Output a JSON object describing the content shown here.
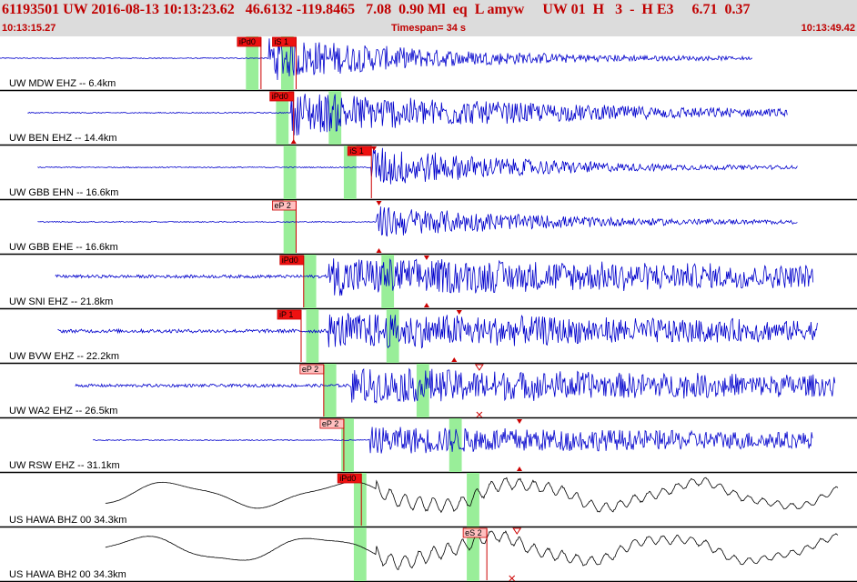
{
  "header": {
    "title": "61193501 UW 2016-08-13 10:13:23.62   46.6132 -119.8465   7.08  0.90 Ml  eq  L amyw     UW 01  H   3  -  H E3     6.71  0.37",
    "start_time": "10:13:15.27",
    "timespan": "Timespan=  34 s",
    "end_time": "10:13:49.42"
  },
  "colors": {
    "short_period_trace": "#0000cc",
    "broadband_trace": "#000000",
    "pick": "#cc0000",
    "window": "#99ee99",
    "header_text": "#c00000",
    "header_bg": "#dcdcdc"
  },
  "chart_data": {
    "type": "line",
    "x_unit": "seconds since 10:13:15.27",
    "xlim": [
      0,
      34.15
    ],
    "traces": [
      {
        "label": "UW MDW EHZ -- 6.4km",
        "trace_color": "blue",
        "signal_start": 0.0,
        "signal_end": 30.0,
        "onset": 10.7,
        "decay": 0.14,
        "amp": 0.9,
        "noise": 0.02,
        "lowfreq": false,
        "windows": [
          [
            9.8,
            10.3
          ],
          [
            11.2,
            11.7
          ]
        ],
        "picks": [
          {
            "label": "iPd0",
            "time": 10.4
          },
          {
            "label": "iS 1",
            "time": 11.8
          }
        ],
        "markers": []
      },
      {
        "label": "UW BEN EHZ -- 14.4km",
        "trace_color": "blue",
        "signal_start": 1.1,
        "signal_end": 31.4,
        "onset": 11.6,
        "decay": 0.09,
        "amp": 0.9,
        "noise": 0.02,
        "lowfreq": false,
        "windows": [
          [
            11.0,
            11.5
          ],
          [
            13.1,
            13.6
          ]
        ],
        "picks": [
          {
            "label": "iPd0",
            "time": 11.7
          }
        ],
        "markers": [
          {
            "time": 11.7,
            "pos": "bottom",
            "shape": "tri-up"
          }
        ]
      },
      {
        "label": "UW GBB EHN -- 16.6km",
        "trace_color": "blue",
        "signal_start": 1.5,
        "signal_end": 31.8,
        "onset": 14.8,
        "decay": 0.16,
        "amp": 0.85,
        "noise": 0.02,
        "lowfreq": false,
        "windows": [
          [
            11.3,
            11.8
          ],
          [
            13.7,
            14.2
          ]
        ],
        "picks": [
          {
            "label": "iS 1",
            "time": 14.8
          }
        ],
        "markers": [
          {
            "time": 14.9,
            "pos": "top",
            "shape": "tri-down"
          }
        ]
      },
      {
        "label": "UW GBB EHE -- 16.6km",
        "trace_color": "blue",
        "signal_start": 1.5,
        "signal_end": 31.8,
        "onset": 15.0,
        "decay": 0.14,
        "amp": 0.65,
        "noise": 0.02,
        "lowfreq": false,
        "windows": [
          [
            11.3,
            11.8
          ]
        ],
        "picks": [
          {
            "label": "eP 2",
            "time": 11.8
          }
        ],
        "markers": [
          {
            "time": 15.1,
            "pos": "top",
            "shape": "tri-down"
          },
          {
            "time": 15.1,
            "pos": "bottom",
            "shape": "tri-up"
          }
        ]
      },
      {
        "label": "UW SNI EHZ -- 21.8km",
        "trace_color": "blue",
        "signal_start": 2.2,
        "signal_end": 32.4,
        "onset": 13.1,
        "decay": 0.03,
        "amp": 0.75,
        "noise": 0.06,
        "lowfreq": false,
        "windows": [
          [
            12.1,
            12.6
          ],
          [
            15.2,
            15.7
          ]
        ],
        "picks": [
          {
            "label": "iPd0",
            "time": 12.1
          }
        ],
        "markers": [
          {
            "time": 17.0,
            "pos": "top",
            "shape": "tri-down"
          },
          {
            "time": 17.0,
            "pos": "bottom",
            "shape": "tri-up"
          }
        ]
      },
      {
        "label": "UW BVW EHZ -- 22.2km",
        "trace_color": "blue",
        "signal_start": 2.3,
        "signal_end": 32.6,
        "onset": 13.1,
        "decay": 0.03,
        "amp": 0.7,
        "noise": 0.07,
        "lowfreq": false,
        "windows": [
          [
            12.2,
            12.7
          ],
          [
            15.4,
            15.9
          ]
        ],
        "picks": [
          {
            "label": "iP 1",
            "time": 12.0
          }
        ],
        "markers": [
          {
            "time": 18.3,
            "pos": "top",
            "shape": "tri-down"
          },
          {
            "time": 18.1,
            "pos": "bottom",
            "shape": "tri-up"
          }
        ]
      },
      {
        "label": "UW WA2 EHZ -- 26.5km",
        "trace_color": "blue",
        "signal_start": 3.0,
        "signal_end": 33.3,
        "onset": 14.0,
        "decay": 0.03,
        "amp": 0.7,
        "noise": 0.06,
        "lowfreq": false,
        "windows": [
          [
            12.9,
            13.4
          ],
          [
            16.6,
            17.1
          ]
        ],
        "picks": [
          {
            "label": "eP 2",
            "time": 12.9
          }
        ],
        "markers": [
          {
            "time": 19.1,
            "pos": "top",
            "shape": "open-down"
          },
          {
            "time": 19.1,
            "pos": "bottom",
            "shape": "x"
          }
        ]
      },
      {
        "label": "UW RSW EHZ -- 31.1km",
        "trace_color": "blue",
        "signal_start": 3.7,
        "signal_end": 32.4,
        "onset": 14.7,
        "decay": 0.03,
        "amp": 0.55,
        "noise": 0.02,
        "lowfreq": false,
        "windows": [
          [
            13.6,
            14.1
          ],
          [
            17.9,
            18.4
          ]
        ],
        "picks": [
          {
            "label": "eP 2",
            "time": 13.7
          }
        ],
        "markers": [
          {
            "time": 20.7,
            "pos": "top",
            "shape": "tri-down"
          },
          {
            "time": 20.7,
            "pos": "bottom",
            "shape": "tri-up"
          }
        ]
      },
      {
        "label": "US HAWA BHZ 00 34.3km",
        "trace_color": "black",
        "signal_start": 4.2,
        "signal_end": 33.4,
        "onset": 15.0,
        "decay": 0.05,
        "amp": 0.35,
        "noise": 0.01,
        "lowfreq": true,
        "windows": [
          [
            14.1,
            14.6
          ],
          [
            18.6,
            19.1
          ]
        ],
        "picks": [
          {
            "label": "iPd0",
            "time": 14.4
          }
        ],
        "markers": []
      },
      {
        "label": "US HAWA BH2 00 34.3km",
        "trace_color": "black",
        "signal_start": 4.2,
        "signal_end": 33.4,
        "onset": 15.0,
        "decay": 0.05,
        "amp": 0.35,
        "noise": 0.01,
        "lowfreq": true,
        "windows": [
          [
            14.1,
            14.6
          ],
          [
            18.6,
            19.1
          ]
        ],
        "picks": [
          {
            "label": "eS 2",
            "time": 19.4
          }
        ],
        "markers": [
          {
            "time": 20.6,
            "pos": "top",
            "shape": "open-down"
          },
          {
            "time": 20.4,
            "pos": "bottom",
            "shape": "x"
          }
        ]
      }
    ]
  }
}
